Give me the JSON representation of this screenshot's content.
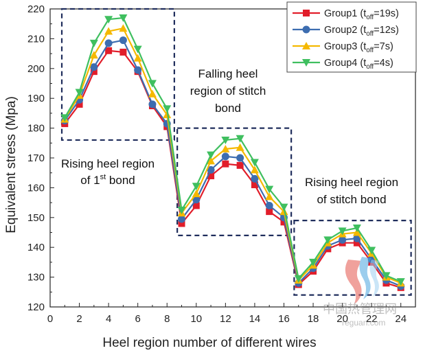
{
  "chart_data": {
    "type": "line",
    "title": "",
    "xlabel": "Heel region number of different wires",
    "ylabel": "Equivalent stress (Mpa)",
    "xlim": [
      0,
      25
    ],
    "ylim": [
      120,
      220
    ],
    "xticks": [
      0,
      2,
      4,
      6,
      8,
      10,
      12,
      14,
      16,
      18,
      20,
      22,
      24
    ],
    "yticks": [
      120,
      130,
      140,
      150,
      160,
      170,
      180,
      190,
      200,
      210,
      220
    ],
    "legend_position": "top-right",
    "x": [
      1,
      2,
      3,
      4,
      5,
      6,
      7,
      8,
      9,
      10,
      11,
      12,
      13,
      14,
      15,
      16,
      17,
      18,
      19,
      20,
      21,
      22,
      23,
      24
    ],
    "series": [
      {
        "name_main": "Group1 (t",
        "name_sub": "off",
        "name_tail": "=19s)",
        "color": "#e11d2a",
        "marker": "square",
        "values": [
          181.5,
          188,
          199,
          206,
          205.5,
          199,
          187.5,
          180.5,
          148,
          154,
          164,
          168,
          167.5,
          161,
          152,
          148.5,
          127.5,
          132,
          139.5,
          141.5,
          141.5,
          135,
          128,
          126.5
        ]
      },
      {
        "name_main": "Group2 (t",
        "name_sub": "off",
        "name_tail": "=12s)",
        "color": "#3d6db0",
        "marker": "circle",
        "values": [
          182.5,
          189.5,
          200.5,
          208.5,
          209.5,
          199.5,
          188,
          181.5,
          149.5,
          156,
          166,
          170.5,
          170,
          163,
          154,
          150,
          128,
          133,
          140.5,
          142.5,
          143,
          136,
          129,
          127
        ]
      },
      {
        "name_main": "Group3 (t",
        "name_sub": "off",
        "name_tail": "=7s)",
        "color": "#f5b800",
        "marker": "triangle-up",
        "values": [
          183,
          191,
          204.5,
          212.5,
          213.5,
          203.5,
          191.5,
          184.5,
          151.5,
          158,
          169,
          173,
          173.5,
          166,
          157,
          152,
          129,
          134,
          141.5,
          144.5,
          145,
          138,
          130,
          128
        ]
      },
      {
        "name_main": "Group4 (t",
        "name_sub": "off",
        "name_tail": "=4s)",
        "color": "#3fbf5f",
        "marker": "triangle-down",
        "values": [
          183.5,
          192,
          208.5,
          216.5,
          217,
          206.5,
          195,
          186.5,
          152.5,
          160.5,
          171,
          176,
          176.5,
          168.5,
          159.5,
          153.5,
          129.5,
          135,
          142.5,
          145.5,
          146.5,
          139,
          130.5,
          128.5
        ]
      }
    ],
    "annotations": [
      {
        "lines": [
          "Rising heel region",
          "of 1"
        ],
        "sup": "st",
        "tail": " bond"
      },
      {
        "lines": [
          "Falling heel",
          "region of stitch",
          "bond"
        ]
      },
      {
        "lines": [
          "Rising heel region",
          "of stitch bond"
        ]
      }
    ]
  },
  "watermark": {
    "brand_text": "中国热管理网",
    "url_text": "reguan.com"
  }
}
